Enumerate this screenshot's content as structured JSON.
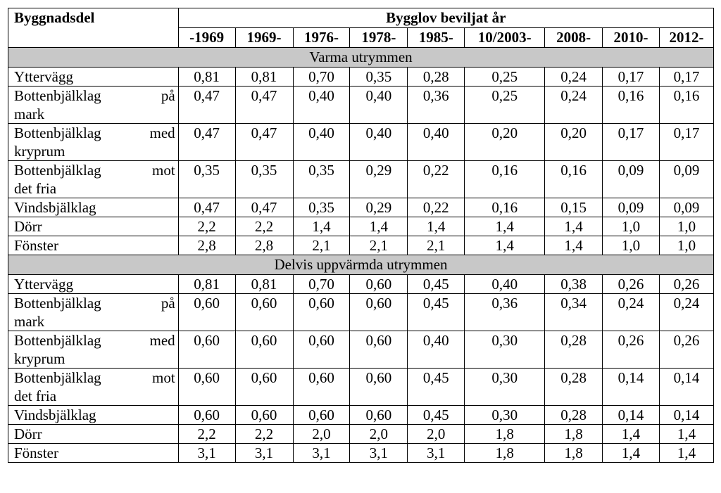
{
  "header": {
    "part_label": "Byggnadsdel",
    "group_label": "Bygglov beviljat år",
    "years": [
      "-1969",
      "1969-",
      "1976-",
      "1978-",
      "1985-",
      "10/2003-",
      "2008-",
      "2010-",
      "2012-"
    ]
  },
  "sections": [
    {
      "title": "Varma utrymmen",
      "rows": [
        {
          "l1": "Yttervägg",
          "l2": "",
          "v": [
            "0,81",
            "0,81",
            "0,70",
            "0,35",
            "0,28",
            "0,25",
            "0,24",
            "0,17",
            "0,17"
          ]
        },
        {
          "l1": "Bottenbjälklag på",
          "l2": "mark",
          "v": [
            "0,47",
            "0,47",
            "0,40",
            "0,40",
            "0,36",
            "0,25",
            "0,24",
            "0,16",
            "0,16"
          ]
        },
        {
          "l1": "Bottenbjälklag med",
          "l2": "kryprum",
          "v": [
            "0,47",
            "0,47",
            "0,40",
            "0,40",
            "0,40",
            "0,20",
            "0,20",
            "0,17",
            "0,17"
          ]
        },
        {
          "l1": "Bottenbjälklag mot",
          "l2": "det fria",
          "v": [
            "0,35",
            "0,35",
            "0,35",
            "0,29",
            "0,22",
            "0,16",
            "0,16",
            "0,09",
            "0,09"
          ]
        },
        {
          "l1": "Vindsbjälklag",
          "l2": "",
          "v": [
            "0,47",
            "0,47",
            "0,35",
            "0,29",
            "0,22",
            "0,16",
            "0,15",
            "0,09",
            "0,09"
          ]
        },
        {
          "l1": "Dörr",
          "l2": "",
          "v": [
            "2,2",
            "2,2",
            "1,4",
            "1,4",
            "1,4",
            "1,4",
            "1,4",
            "1,0",
            "1,0"
          ]
        },
        {
          "l1": "Fönster",
          "l2": "",
          "v": [
            "2,8",
            "2,8",
            "2,1",
            "2,1",
            "2,1",
            "1,4",
            "1,4",
            "1,0",
            "1,0"
          ]
        }
      ]
    },
    {
      "title": "Delvis uppvärmda utrymmen",
      "rows": [
        {
          "l1": "Yttervägg",
          "l2": "",
          "v": [
            "0,81",
            "0,81",
            "0,70",
            "0,60",
            "0,45",
            "0,40",
            "0,38",
            "0,26",
            "0,26"
          ]
        },
        {
          "l1": "Bottenbjälklag på",
          "l2": "mark",
          "v": [
            "0,60",
            "0,60",
            "0,60",
            "0,60",
            "0,45",
            "0,36",
            "0,34",
            "0,24",
            "0,24"
          ]
        },
        {
          "l1": "Bottenbjälklag med",
          "l2": "kryprum",
          "v": [
            "0,60",
            "0,60",
            "0,60",
            "0,60",
            "0,40",
            "0,30",
            "0,28",
            "0,26",
            "0,26"
          ]
        },
        {
          "l1": "Bottenbjälklag mot",
          "l2": "det fria",
          "v": [
            "0,60",
            "0,60",
            "0,60",
            "0,60",
            "0,45",
            "0,30",
            "0,28",
            "0,14",
            "0,14"
          ]
        },
        {
          "l1": "Vindsbjälklag",
          "l2": "",
          "v": [
            "0,60",
            "0,60",
            "0,60",
            "0,60",
            "0,45",
            "0,30",
            "0,28",
            "0,14",
            "0,14"
          ]
        },
        {
          "l1": "Dörr",
          "l2": "",
          "v": [
            "2,2",
            "2,2",
            "2,0",
            "2,0",
            "2,0",
            "1,8",
            "1,8",
            "1,4",
            "1,4"
          ]
        },
        {
          "l1": "Fönster",
          "l2": "",
          "v": [
            "3,1",
            "3,1",
            "3,1",
            "3,1",
            "3,1",
            "1,8",
            "1,8",
            "1,4",
            "1,4"
          ]
        }
      ]
    }
  ]
}
